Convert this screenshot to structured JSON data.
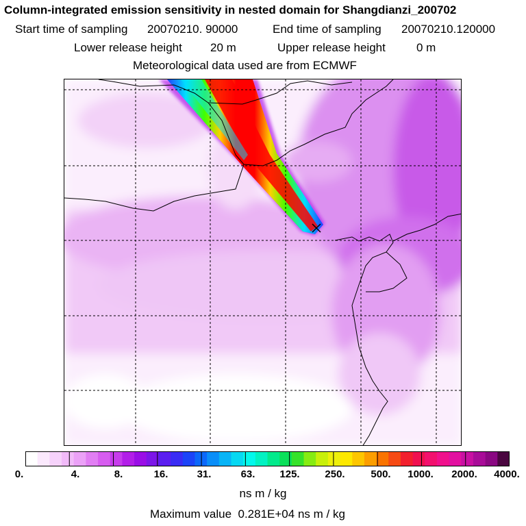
{
  "header": {
    "title": "Column-integrated emission sensitivity in nested domain for Shangdianzi_200702",
    "start_label": "Start time of sampling",
    "start_value": "20070210. 90000",
    "end_label": "End time of sampling",
    "end_value": "20070210.120000",
    "lower_label": "Lower release height",
    "lower_value": "20 m",
    "upper_label": "Upper release height",
    "upper_value": "0 m",
    "met_text": "Meteorological data used are from ECMWF"
  },
  "colorbar": {
    "colors": [
      "#ffffff",
      "#fbe9fd",
      "#f6d2fb",
      "#f1baf9",
      "#eba1f7",
      "#e17ef3",
      "#d75df0",
      "#c73cec",
      "#b21ee8",
      "#9a0ee6",
      "#7c16e8",
      "#5b1ef0",
      "#3a2cf4",
      "#1c44f8",
      "#0c68fa",
      "#0a8ef8",
      "#08b4f6",
      "#06d8f2",
      "#03f8ec",
      "#02f2c2",
      "#02ea8c",
      "#0ae05a",
      "#36e22a",
      "#86ec12",
      "#c8f00a",
      "#eef00a",
      "#fde800",
      "#fdc600",
      "#fc9e00",
      "#fa7400",
      "#f64a14",
      "#f2202e",
      "#f01050",
      "#f2106e",
      "#f0108c",
      "#e210a0",
      "#c810a2",
      "#a80c98",
      "#8a0882",
      "#4a0640"
    ],
    "tick_labels": [
      "0.",
      "4.",
      "8.",
      "16.",
      "31.",
      "63.",
      "125.",
      "250.",
      "500.",
      "1000.",
      "2000.",
      "4000."
    ],
    "unit": "ns m / kg",
    "max_label": "Maximum value",
    "max_value": "0.281E+04 ns m / kg"
  },
  "map": {
    "receptor": "Shangdianzi",
    "gridlines": "dashed",
    "plume_direction": "northwest",
    "plume_colors": [
      "#ff0000",
      "#ffd000",
      "#40ff00",
      "#00e0ff",
      "#2040ff"
    ],
    "background_shade": "#e8a8f2",
    "coast_color": "#000000"
  }
}
